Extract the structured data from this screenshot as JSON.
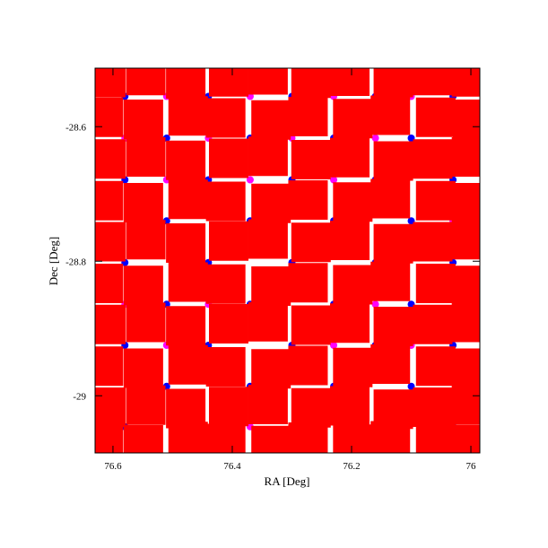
{
  "chart_data": {
    "type": "scatter",
    "x_label": "RA [Deg]",
    "y_label": "Dec [Deg]",
    "xlim": [
      76.63,
      75.985
    ],
    "ylim": [
      -29.085,
      -28.513
    ],
    "xticks": [
      76.6,
      76.4,
      76.2,
      76
    ],
    "yticks": [
      -28.6,
      -28.8,
      -29
    ],
    "series": [
      {
        "color": "#0000ff",
        "marker": "circle",
        "x": [
          76.58,
          76.44,
          76.3,
          76.16,
          76.03,
          76.51,
          76.37,
          76.23,
          76.1,
          76.58,
          76.44,
          76.3,
          76.16,
          76.03,
          76.51,
          76.37,
          76.23,
          76.1,
          76.58,
          76.44,
          76.3,
          76.16,
          76.03,
          76.51,
          76.37,
          76.23,
          76.1,
          76.58,
          76.44,
          76.3,
          76.16,
          76.03,
          76.51,
          76.37,
          76.23,
          76.1,
          76.58,
          76.3,
          76.03,
          76.44
        ],
        "values": [
          -28.555,
          -28.555,
          -28.555,
          -28.555,
          -28.555,
          -28.617,
          -28.617,
          -28.617,
          -28.617,
          -28.679,
          -28.679,
          -28.679,
          -28.679,
          -28.679,
          -28.74,
          -28.74,
          -28.74,
          -28.74,
          -28.802,
          -28.802,
          -28.802,
          -28.802,
          -28.802,
          -28.864,
          -28.864,
          -28.864,
          -28.864,
          -28.925,
          -28.925,
          -28.925,
          -28.925,
          -28.925,
          -28.986,
          -28.986,
          -28.986,
          -28.986,
          -29.046,
          -29.046,
          -29.046,
          -29.07
        ]
      },
      {
        "color": "#ff00ff",
        "marker": "circle",
        "x": [
          76.51,
          76.37,
          76.23,
          76.1,
          76.58,
          76.44,
          76.3,
          76.16,
          76.51,
          76.37,
          76.23,
          76.03,
          76.58,
          76.44,
          76.16,
          76.51,
          76.23,
          76.1,
          76.37,
          76.16
        ],
        "values": [
          -28.555,
          -28.555,
          -28.555,
          -28.555,
          -28.617,
          -28.617,
          -28.617,
          -28.617,
          -28.679,
          -28.679,
          -28.679,
          -28.74,
          -28.864,
          -28.864,
          -28.864,
          -28.925,
          -28.925,
          -28.925,
          -29.046,
          -29.046
        ]
      },
      {
        "color": "#ff0000",
        "marker": "square",
        "x": [
          76.612,
          76.545,
          76.478,
          76.406,
          76.34,
          76.268,
          76.203,
          76.13,
          76.064,
          75.999,
          76.616,
          76.549,
          76.474,
          76.411,
          76.335,
          76.273,
          76.198,
          76.135,
          76.059,
          75.997,
          76.612,
          76.545,
          76.478,
          76.406,
          76.34,
          76.268,
          76.203,
          76.13,
          76.064,
          75.999,
          76.616,
          76.549,
          76.474,
          76.411,
          76.335,
          76.273,
          76.198,
          76.135,
          76.059,
          75.997,
          76.612,
          76.545,
          76.478,
          76.406,
          76.34,
          76.268,
          76.203,
          76.13,
          76.064,
          75.999,
          76.616,
          76.549,
          76.474,
          76.411,
          76.335,
          76.273,
          76.198,
          76.135,
          76.059,
          75.997,
          76.612,
          76.545,
          76.478,
          76.406,
          76.34,
          76.268,
          76.203,
          76.13,
          76.064,
          75.999,
          76.616,
          76.549,
          76.474,
          76.411,
          76.335,
          76.273,
          76.198,
          76.135,
          76.059,
          75.997,
          76.612,
          76.545,
          76.478,
          76.406,
          76.34,
          76.268,
          76.203,
          76.13,
          76.064,
          75.999,
          76.616,
          76.549,
          76.474,
          76.411,
          76.335,
          76.273,
          76.198,
          76.135,
          76.059,
          75.997
        ],
        "values": [
          -28.527,
          -28.524,
          -28.529,
          -28.526,
          -28.523,
          -28.528,
          -28.525,
          -28.527,
          -28.524,
          -28.526,
          -28.586,
          -28.589,
          -28.584,
          -28.587,
          -28.59,
          -28.585,
          -28.588,
          -28.583,
          -28.586,
          -28.589,
          -28.648,
          -28.645,
          -28.65,
          -28.647,
          -28.644,
          -28.649,
          -28.646,
          -28.651,
          -28.648,
          -28.645,
          -28.71,
          -28.713,
          -28.708,
          -28.711,
          -28.714,
          -28.709,
          -28.712,
          -28.707,
          -28.71,
          -28.713,
          -28.771,
          -28.768,
          -28.773,
          -28.77,
          -28.767,
          -28.772,
          -28.769,
          -28.774,
          -28.771,
          -28.768,
          -28.833,
          -28.836,
          -28.831,
          -28.834,
          -28.837,
          -28.832,
          -28.835,
          -28.83,
          -28.833,
          -28.836,
          -28.894,
          -28.891,
          -28.896,
          -28.893,
          -28.89,
          -28.895,
          -28.892,
          -28.897,
          -28.894,
          -28.891,
          -28.956,
          -28.959,
          -28.954,
          -28.957,
          -28.96,
          -28.955,
          -28.958,
          -28.953,
          -28.956,
          -28.959,
          -29.017,
          -29.014,
          -29.019,
          -29.016,
          -29.013,
          -29.018,
          -29.015,
          -29.02,
          -29.017,
          -29.014,
          -29.07,
          -29.073,
          -29.068,
          -29.071,
          -29.074,
          -29.069,
          -29.072,
          -29.067,
          -29.07,
          -29.073
        ]
      }
    ]
  }
}
